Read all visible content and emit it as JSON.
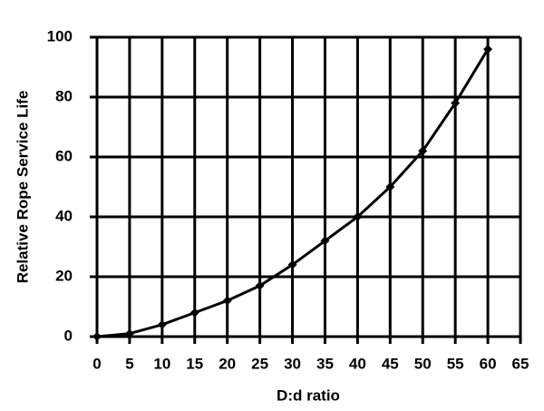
{
  "chart_data": {
    "type": "line",
    "x_label": "D:d ratio",
    "y_label": "Relative Rope Service Life",
    "x": [
      0,
      5,
      10,
      15,
      20,
      25,
      30,
      35,
      40,
      45,
      50,
      55,
      60
    ],
    "series": [
      {
        "color": "#000000",
        "values": [
          0,
          1,
          4,
          8,
          12,
          17,
          24,
          32,
          40,
          50,
          62,
          78,
          96
        ]
      }
    ],
    "xlim": [
      0,
      65
    ],
    "xticks": [
      0,
      5,
      10,
      15,
      20,
      25,
      30,
      35,
      40,
      45,
      50,
      55,
      60,
      65
    ],
    "ylim": [
      0,
      100
    ],
    "yticks": [
      0,
      20,
      40,
      60,
      80,
      100
    ],
    "grid": true
  }
}
